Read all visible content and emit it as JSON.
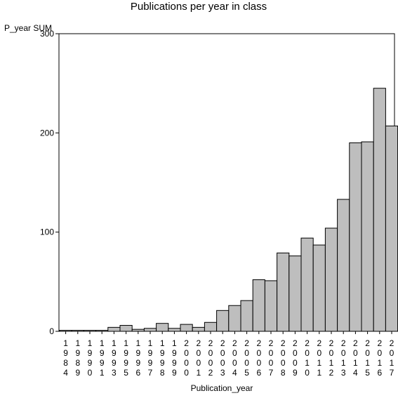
{
  "chart_data": {
    "type": "bar",
    "title": "Publications per year in class",
    "ylabel": "P_year SUM",
    "xlabel": "Publication_year",
    "ylim": [
      0,
      300
    ],
    "yticks": [
      0,
      100,
      200,
      300
    ],
    "grid": false,
    "bar_color": "#bebebe",
    "categories": [
      "1984",
      "1989",
      "1990",
      "1991",
      "1993",
      "1995",
      "1996",
      "1997",
      "1998",
      "1999",
      "2000",
      "2001",
      "2002",
      "2003",
      "2004",
      "2005",
      "2006",
      "2007",
      "2008",
      "2009",
      "2010",
      "2011",
      "2012",
      "2013",
      "2014",
      "2015",
      "2016",
      "2017"
    ],
    "values": [
      1,
      1,
      1,
      1,
      4,
      6,
      2,
      3,
      8,
      3,
      7,
      4,
      9,
      21,
      26,
      31,
      52,
      51,
      79,
      76,
      94,
      87,
      104,
      133,
      190,
      191,
      245,
      207
    ]
  }
}
